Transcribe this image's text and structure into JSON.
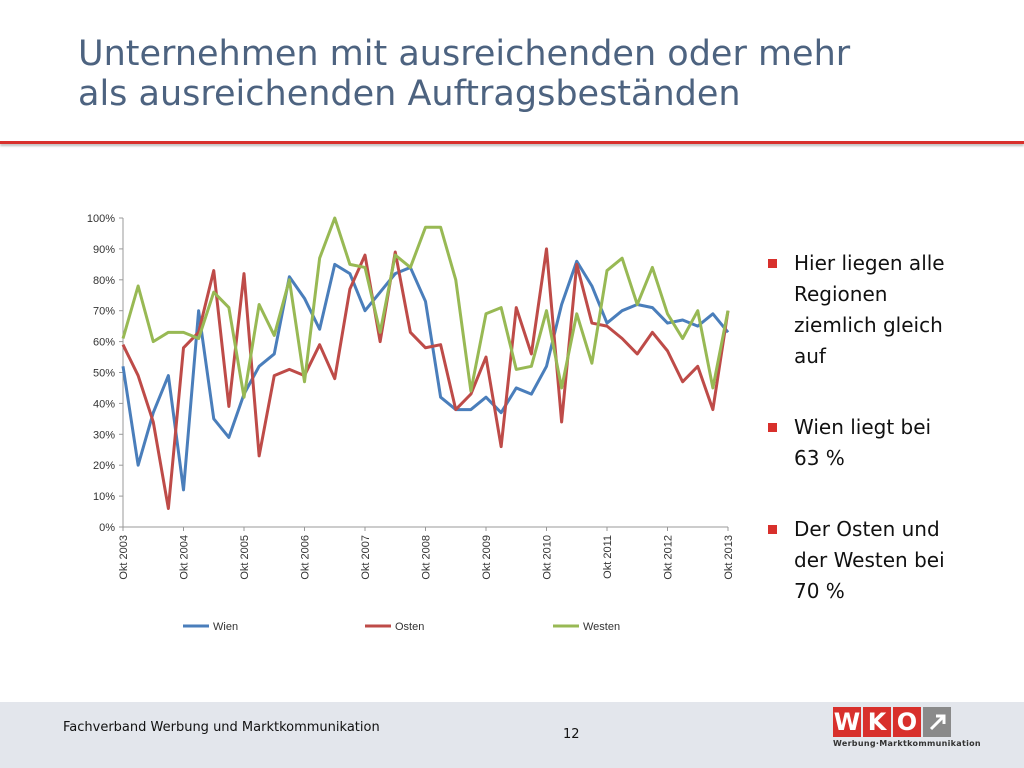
{
  "title": [
    "Unternehmen mit ausreichenden oder mehr",
    "als ausreichenden Auftragsbeständen"
  ],
  "bullets": [
    "Hier liegen alle Regionen ziemlich gleich auf",
    "Wien liegt bei 63 %",
    "Der Osten und der Westen bei 70 %"
  ],
  "footer": {
    "text": "Fachverband Werbung und Marktkommunikation",
    "page": "12"
  },
  "logo": {
    "letters": [
      "W",
      "K",
      "O"
    ],
    "tagline": "Werbung·Marktkommunikation"
  },
  "chart_data": {
    "type": "line",
    "categories": [
      "Okt 2003",
      null,
      null,
      null,
      "Okt 2004",
      null,
      null,
      null,
      "Okt 2005",
      null,
      null,
      null,
      "Okt 2006",
      null,
      null,
      null,
      "Okt 2007",
      null,
      null,
      null,
      "Okt 2008",
      null,
      null,
      null,
      "Okt 2009",
      null,
      null,
      null,
      "Okt 2010",
      null,
      null,
      null,
      "Okt 2011",
      null,
      null,
      null,
      "Okt 2012",
      null,
      null,
      null,
      "Okt 2013"
    ],
    "series": [
      {
        "name": "Wien",
        "color": "#4a7ebb",
        "values": [
          52,
          20,
          37,
          49,
          12,
          70,
          35,
          29,
          43,
          52,
          56,
          81,
          74,
          64,
          85,
          82,
          70,
          76,
          82,
          84,
          73,
          42,
          38,
          38,
          42,
          37,
          45,
          43,
          52,
          72,
          86,
          78,
          66,
          70,
          72,
          71,
          66,
          67,
          65,
          69,
          63
        ]
      },
      {
        "name": "Osten",
        "color": "#be4b48",
        "values": [
          59,
          49,
          34,
          6,
          58,
          63,
          83,
          39,
          82,
          23,
          49,
          51,
          49,
          59,
          48,
          77,
          88,
          60,
          89,
          63,
          58,
          59,
          38,
          43,
          55,
          26,
          71,
          56,
          90,
          34,
          85,
          66,
          65,
          61,
          56,
          63,
          57,
          47,
          52,
          38,
          70
        ]
      },
      {
        "name": "Westen",
        "color": "#98b954",
        "values": [
          61,
          78,
          60,
          63,
          63,
          61,
          76,
          71,
          42,
          72,
          62,
          80,
          47,
          87,
          100,
          85,
          84,
          63,
          88,
          84,
          97,
          97,
          80,
          44,
          69,
          71,
          51,
          52,
          70,
          45,
          69,
          53,
          83,
          87,
          72,
          84,
          69,
          61,
          70,
          45,
          70
        ]
      }
    ],
    "ylim": [
      0,
      100
    ],
    "yticks": [
      {
        "value": 0,
        "label": "0%"
      },
      {
        "value": 10,
        "label": "10%"
      },
      {
        "value": 20,
        "label": "20%"
      },
      {
        "value": 30,
        "label": "30%"
      },
      {
        "value": 40,
        "label": "40%"
      },
      {
        "value": 50,
        "label": "50%"
      },
      {
        "value": 60,
        "label": "60%"
      },
      {
        "value": 70,
        "label": "70%"
      },
      {
        "value": 80,
        "label": "80%"
      },
      {
        "value": 90,
        "label": "90%"
      },
      {
        "value": 100,
        "label": "100%"
      }
    ],
    "grid": false,
    "legend": "bottom"
  }
}
